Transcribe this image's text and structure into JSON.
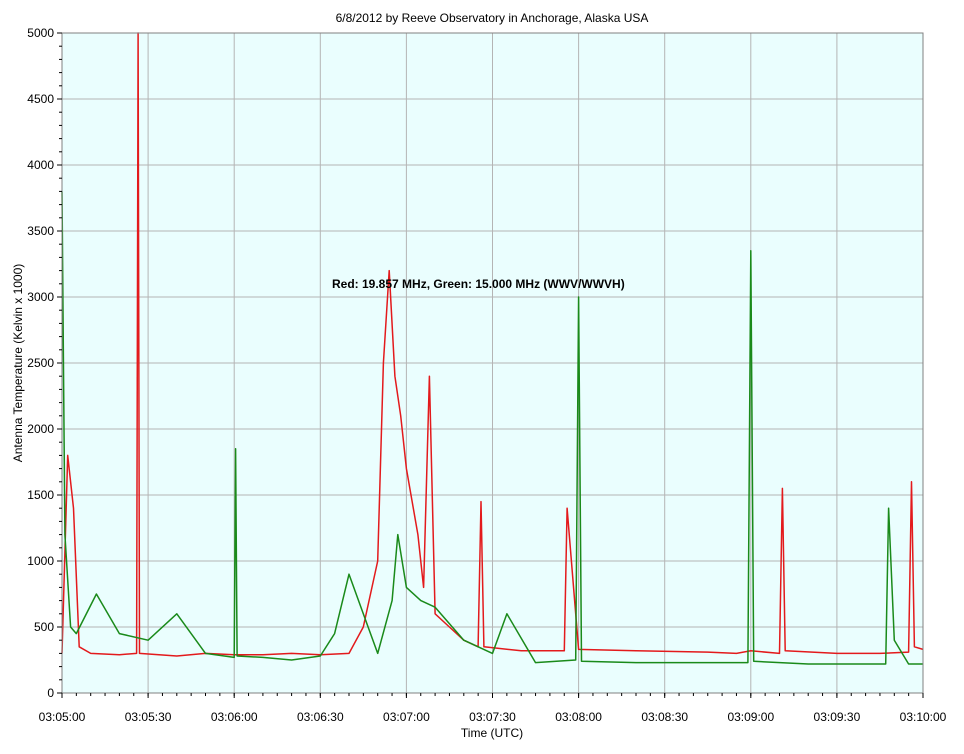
{
  "chart_data": {
    "type": "line",
    "title": "6/8/2012  by  Reeve Observatory  in  Anchorage, Alaska  USA",
    "xlabel": "Time (UTC)",
    "ylabel": "Antenna Temperature (Kelvin x 1000)",
    "annotation": "Red: 19.857 MHz, Green: 15.000 MHz (WWV/WWVH)",
    "xlim": [
      "03:05:00",
      "03:10:00"
    ],
    "ylim": [
      0,
      5000
    ],
    "x_ticks": [
      "03:05:00",
      "03:05:30",
      "03:06:00",
      "03:06:30",
      "03:07:00",
      "03:07:30",
      "03:08:00",
      "03:08:30",
      "03:09:00",
      "03:09:30",
      "03:10:00"
    ],
    "y_ticks": [
      "0",
      "500",
      "1000",
      "1500",
      "2000",
      "2500",
      "3000",
      "3500",
      "4000",
      "4500",
      "5000"
    ],
    "grid": true,
    "background_color": "#eafefe",
    "series": [
      {
        "color": "#e31a1c",
        "x": [
          "03:05:00",
          "03:05:02",
          "03:05:04",
          "03:05:06",
          "03:05:10",
          "03:05:20",
          "03:05:26",
          "03:05:26.5",
          "03:05:27",
          "03:05:40",
          "03:05:50",
          "03:06:00",
          "03:06:10",
          "03:06:20",
          "03:06:30",
          "03:06:40",
          "03:06:45",
          "03:06:50",
          "03:06:52",
          "03:06:54",
          "03:06:56",
          "03:06:58",
          "03:07:00",
          "03:07:04",
          "03:07:06",
          "03:07:08",
          "03:07:10",
          "03:07:15",
          "03:07:20",
          "03:07:25",
          "03:07:26",
          "03:07:27",
          "03:07:40",
          "03:07:55",
          "03:07:56",
          "03:08:00",
          "03:08:20",
          "03:08:45",
          "03:08:55",
          "03:09:00",
          "03:09:10",
          "03:09:11",
          "03:09:12",
          "03:09:30",
          "03:09:45",
          "03:09:55",
          "03:09:56",
          "03:09:57",
          "03:10:00"
        ],
        "y": [
          300,
          1800,
          1400,
          350,
          300,
          290,
          300,
          5000,
          300,
          280,
          300,
          290,
          290,
          300,
          290,
          300,
          500,
          1000,
          2500,
          3200,
          2400,
          2100,
          1700,
          1200,
          800,
          2400,
          600,
          500,
          400,
          350,
          1450,
          350,
          320,
          320,
          1400,
          330,
          320,
          310,
          300,
          320,
          300,
          1550,
          320,
          300,
          300,
          310,
          1600,
          350,
          330
        ]
      },
      {
        "color": "#1a8a1a",
        "x": [
          "03:05:00",
          "03:05:01",
          "03:05:03",
          "03:05:05",
          "03:05:12",
          "03:05:20",
          "03:05:30",
          "03:05:40",
          "03:05:50",
          "03:06:00",
          "03:06:00.5",
          "03:06:01",
          "03:06:10",
          "03:06:20",
          "03:06:30",
          "03:06:35",
          "03:06:40",
          "03:06:45",
          "03:06:50",
          "03:06:55",
          "03:06:57",
          "03:07:00",
          "03:07:05",
          "03:07:10",
          "03:07:20",
          "03:07:30",
          "03:07:35",
          "03:07:45",
          "03:07:59",
          "03:08:00",
          "03:08:01",
          "03:08:20",
          "03:08:59",
          "03:09:00",
          "03:09:01",
          "03:09:20",
          "03:09:40",
          "03:09:47",
          "03:09:48",
          "03:09:50",
          "03:09:55",
          "03:10:00"
        ],
        "y": [
          3800,
          1200,
          500,
          450,
          750,
          450,
          400,
          600,
          300,
          270,
          1850,
          280,
          270,
          250,
          280,
          450,
          900,
          600,
          300,
          700,
          1200,
          800,
          700,
          650,
          400,
          300,
          600,
          230,
          250,
          3000,
          240,
          230,
          230,
          3350,
          240,
          220,
          220,
          220,
          1400,
          400,
          220,
          220
        ]
      }
    ]
  }
}
